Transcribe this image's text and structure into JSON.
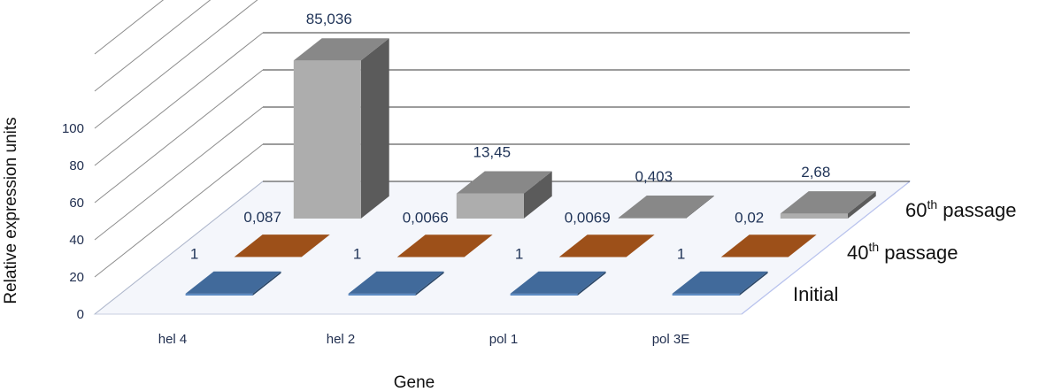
{
  "chart_data": {
    "type": "bar",
    "subtype": "3d-column",
    "title": "",
    "xlabel": "Gene",
    "ylabel": "Relative expression units",
    "ylim": [
      0,
      100
    ],
    "yticks": [
      "0",
      "20",
      "40",
      "60",
      "80",
      "100"
    ],
    "categories": [
      "hel 4",
      "hel 2",
      "pol 1",
      "pol 3E"
    ],
    "series": [
      {
        "name": "Initial",
        "values": [
          1,
          1,
          1,
          1
        ],
        "labels": [
          "1",
          "1",
          "1",
          "1"
        ],
        "color": "#4f81bd"
      },
      {
        "name": "40th passage",
        "name_base": "40",
        "name_sup": "th",
        "name_rest": " passage",
        "values": [
          0.087,
          0.0066,
          0.0069,
          0.02
        ],
        "labels": [
          "0,087",
          "0,0066",
          "0,0069",
          "0,02"
        ],
        "color": "#c0611e"
      },
      {
        "name": "60th passage",
        "name_base": "60",
        "name_sup": "th",
        "name_rest": " passage",
        "values": [
          85.036,
          13.45,
          0.403,
          2.68
        ],
        "labels": [
          "85,036",
          "13,45",
          "0,403",
          "2,68"
        ],
        "color": "#a6a6a6"
      }
    ],
    "grid": true,
    "legend": "series labels along depth axis (right)"
  }
}
